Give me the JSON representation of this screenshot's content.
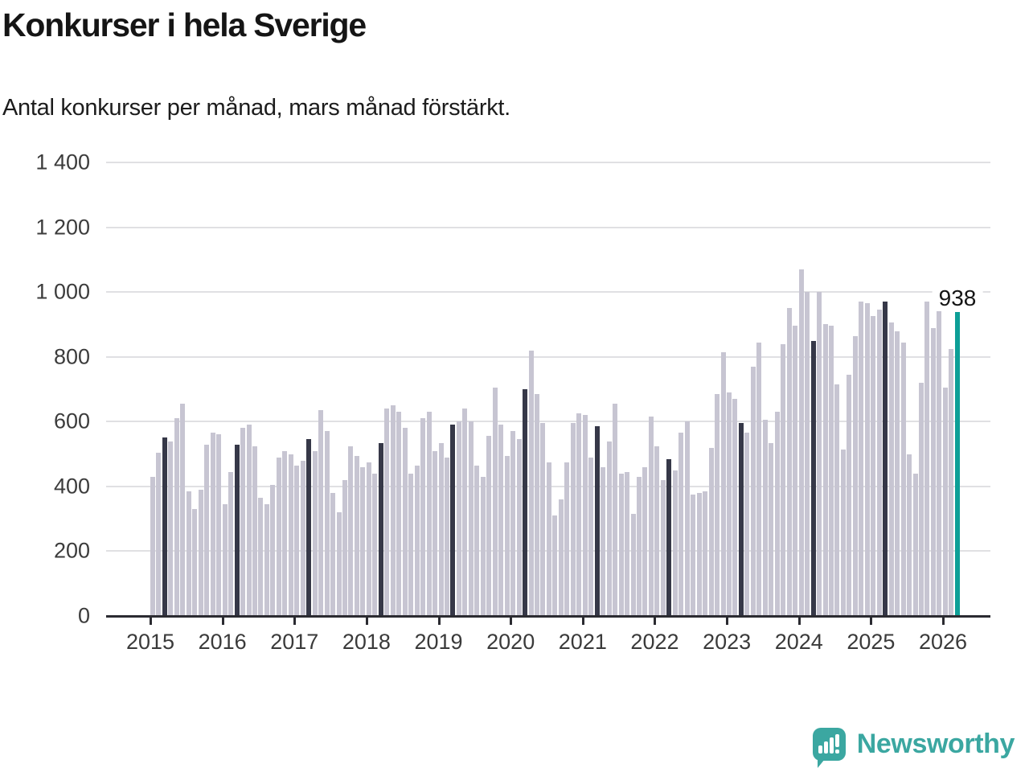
{
  "header": {
    "title": "Konkurser i hela Sverige",
    "subtitle": "Antal konkurser per månad, mars månad förstärkt."
  },
  "chart_data": {
    "type": "bar",
    "title": "Konkurser i hela Sverige",
    "subtitle": "Antal konkurser per månad, mars månad förstärkt.",
    "unit": "konkurser per månad",
    "start": "2015-01",
    "end": "2026-03",
    "highlighted_month": "mars",
    "ylim": [
      0,
      1400
    ],
    "grid": true,
    "y_tick_labels": [
      "0",
      "200",
      "400",
      "600",
      "800",
      "1 000",
      "1 200",
      "1 400"
    ],
    "year_labels": [
      "2015",
      "2016",
      "2017",
      "2018",
      "2019",
      "2020",
      "2021",
      "2022",
      "2023",
      "2024",
      "2025",
      "2026"
    ],
    "series": [
      {
        "name": "Antal konkurser per månad",
        "values": [
          430,
          505,
          550,
          540,
          610,
          655,
          385,
          330,
          390,
          530,
          565,
          560,
          345,
          445,
          530,
          580,
          590,
          525,
          365,
          345,
          405,
          490,
          510,
          500,
          465,
          480,
          545,
          510,
          635,
          570,
          380,
          320,
          420,
          525,
          495,
          460,
          475,
          440,
          535,
          640,
          650,
          630,
          580,
          440,
          465,
          610,
          630,
          510,
          535,
          490,
          590,
          600,
          640,
          600,
          465,
          430,
          555,
          705,
          590,
          495,
          570,
          545,
          700,
          820,
          685,
          595,
          475,
          310,
          360,
          475,
          595,
          625,
          620,
          490,
          585,
          460,
          540,
          655,
          440,
          445,
          315,
          430,
          460,
          615,
          525,
          420,
          485,
          450,
          565,
          600,
          375,
          380,
          385,
          520,
          685,
          815,
          690,
          670,
          595,
          565,
          770,
          845,
          605,
          535,
          630,
          840,
          950,
          895,
          1070,
          1000,
          850,
          1000,
          900,
          895,
          715,
          515,
          745,
          865,
          970,
          965,
          925,
          945,
          970,
          905,
          880,
          845,
          500,
          440,
          720,
          970,
          890,
          950,
          705,
          825,
          938
        ]
      }
    ],
    "annotation": {
      "label": "938",
      "value": 938,
      "month": "2026-03"
    },
    "colors": {
      "bar": "#c7c5d2",
      "march_bar": "#363848",
      "latest_bar": "#0d9f97",
      "axis": "#2b2b31",
      "gridline": "#e0e0e3"
    }
  },
  "footer": {
    "brand": "Newsworthy"
  }
}
